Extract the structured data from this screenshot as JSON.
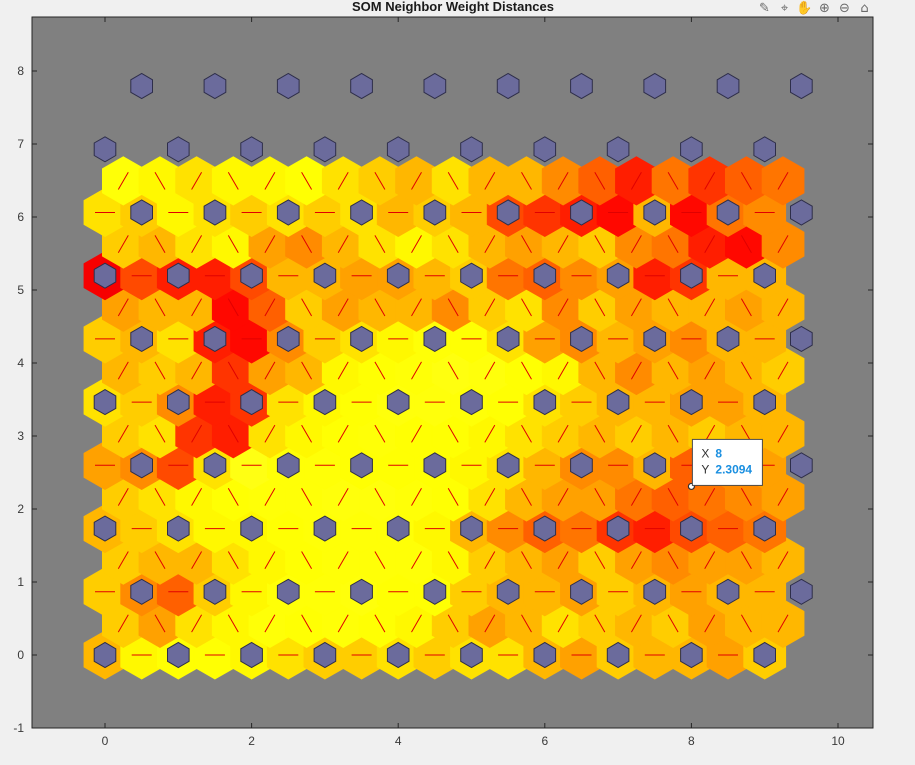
{
  "figure": {
    "title": "SOM Neighbor Weight Distances"
  },
  "toolbar": [
    {
      "name": "brush-icon",
      "glyph": "✎"
    },
    {
      "name": "data-tips-icon",
      "glyph": "⌖"
    },
    {
      "name": "pan-icon",
      "glyph": "✋"
    },
    {
      "name": "zoom-in-icon",
      "glyph": "⊕"
    },
    {
      "name": "zoom-out-icon",
      "glyph": "⊖"
    },
    {
      "name": "home-icon",
      "glyph": "⌂"
    }
  ],
  "datatip": {
    "x_label": "X",
    "x_value": "8",
    "y_label": "Y",
    "y_value": "2.3094"
  },
  "colors": {
    "axes_bg": "#808080",
    "neuron": "#6b6b9c",
    "link_line": "#e00000",
    "tip_value": "#1a8fe0"
  },
  "chart_data": {
    "type": "heatmap",
    "title": "SOM Neighbor Weight Distances",
    "xlim": [
      -1,
      10.5
    ],
    "ylim": [
      -1,
      8.8
    ],
    "xticks": [
      0,
      2,
      4,
      6,
      8,
      10
    ],
    "yticks": [
      -1,
      0,
      1,
      2,
      3,
      4,
      5,
      6,
      7,
      8
    ],
    "grid": false,
    "colormap": "hot",
    "neuron_grid": {
      "columns": 10,
      "rows": 10,
      "topology": "hexagonal"
    },
    "neuron_positions": {
      "even_rows_x": [
        0,
        1,
        2,
        3,
        4,
        5,
        6,
        7,
        8,
        9
      ],
      "odd_rows_x": [
        0.5,
        1.5,
        2.5,
        3.5,
        4.5,
        5.5,
        6.5,
        7.5,
        8.5,
        9.5
      ],
      "rows_y": [
        0,
        0.866,
        1.732,
        2.598,
        3.464,
        4.33,
        5.196,
        6.062,
        6.928,
        7.794
      ]
    },
    "distance_levels": [
      [
        0.55,
        0.4,
        0.35,
        0.35,
        0.4,
        0.45,
        0.5,
        0.5,
        0.45,
        0.5,
        0.45,
        0.45,
        0.55,
        0.6,
        0.5,
        0.55,
        0.55,
        0.6,
        0.5
      ],
      [
        0.5,
        0.6,
        0.45,
        0.4,
        0.3,
        0.35,
        0.3,
        0.35,
        0.4,
        0.5,
        0.6,
        0.55,
        0.45,
        0.5,
        0.55,
        0.5,
        0.6,
        0.55,
        0.55
      ],
      [
        0.5,
        0.65,
        0.75,
        0.5,
        0.4,
        0.3,
        0.3,
        0.25,
        0.35,
        0.35,
        0.5,
        0.55,
        0.55,
        0.6,
        0.5,
        0.55,
        0.6,
        0.55,
        0.55
      ],
      [
        0.5,
        0.55,
        0.55,
        0.45,
        0.4,
        0.35,
        0.3,
        0.3,
        0.3,
        0.4,
        0.5,
        0.55,
        0.6,
        0.5,
        0.6,
        0.65,
        0.6,
        0.6,
        0.55
      ],
      [
        0.55,
        0.5,
        0.45,
        0.4,
        0.4,
        0.35,
        0.3,
        0.3,
        0.3,
        0.4,
        0.55,
        0.65,
        0.75,
        0.7,
        0.85,
        0.9,
        0.8,
        0.75,
        0.7
      ],
      [
        0.5,
        0.45,
        0.4,
        0.35,
        0.3,
        0.3,
        0.25,
        0.25,
        0.3,
        0.35,
        0.45,
        0.55,
        0.6,
        0.6,
        0.7,
        0.75,
        0.7,
        0.65,
        0.6
      ],
      [
        0.6,
        0.65,
        0.8,
        0.45,
        0.15,
        0.3,
        0.3,
        0.35,
        0.35,
        0.35,
        0.4,
        0.45,
        0.55,
        0.65,
        0.65,
        0.55,
        0.75,
        0.65,
        0.6
      ],
      [
        0.5,
        0.45,
        0.85,
        0.9,
        0.45,
        0.4,
        0.35,
        0.3,
        0.35,
        0.35,
        0.4,
        0.45,
        0.5,
        0.55,
        0.5,
        0.55,
        0.5,
        0.55,
        0.55
      ],
      [
        0.45,
        0.5,
        0.65,
        0.9,
        0.85,
        0.45,
        0.4,
        0.35,
        0.25,
        0.25,
        0.3,
        0.35,
        0.45,
        0.5,
        0.55,
        0.55,
        0.6,
        0.6,
        0.55
      ],
      [
        0.55,
        0.5,
        0.55,
        0.85,
        0.6,
        0.55,
        0.4,
        0.35,
        0.3,
        0.2,
        0.25,
        0.35,
        0.4,
        0.55,
        0.65,
        0.55,
        0.6,
        0.55,
        0.5
      ],
      [
        0.5,
        0.55,
        0.45,
        0.9,
        0.95,
        0.65,
        0.5,
        0.45,
        0.4,
        0.3,
        0.35,
        0.45,
        0.6,
        0.65,
        0.55,
        0.6,
        0.65,
        0.55,
        0.55
      ],
      [
        0.6,
        0.55,
        0.55,
        0.95,
        0.75,
        0.5,
        0.6,
        0.55,
        0.55,
        0.65,
        0.5,
        0.45,
        0.65,
        0.5,
        0.6,
        0.55,
        0.55,
        0.6,
        0.55
      ],
      [
        0.99,
        0.8,
        0.9,
        0.9,
        0.8,
        0.55,
        0.55,
        0.6,
        0.6,
        0.55,
        0.5,
        0.7,
        0.75,
        0.65,
        0.6,
        0.9,
        0.85,
        0.55,
        0.55
      ],
      [
        0.5,
        0.55,
        0.45,
        0.4,
        0.6,
        0.65,
        0.55,
        0.45,
        0.4,
        0.45,
        0.55,
        0.6,
        0.55,
        0.5,
        0.65,
        0.7,
        0.9,
        0.95,
        0.65
      ],
      [
        0.45,
        0.5,
        0.4,
        0.45,
        0.5,
        0.45,
        0.5,
        0.45,
        0.55,
        0.5,
        0.55,
        0.8,
        0.85,
        0.9,
        0.95,
        0.55,
        0.95,
        0.7,
        0.65
      ],
      [
        0.3,
        0.4,
        0.45,
        0.4,
        0.4,
        0.35,
        0.45,
        0.5,
        0.55,
        0.45,
        0.55,
        0.55,
        0.65,
        0.75,
        0.9,
        0.7,
        0.85,
        0.75,
        0.7
      ]
    ]
  }
}
